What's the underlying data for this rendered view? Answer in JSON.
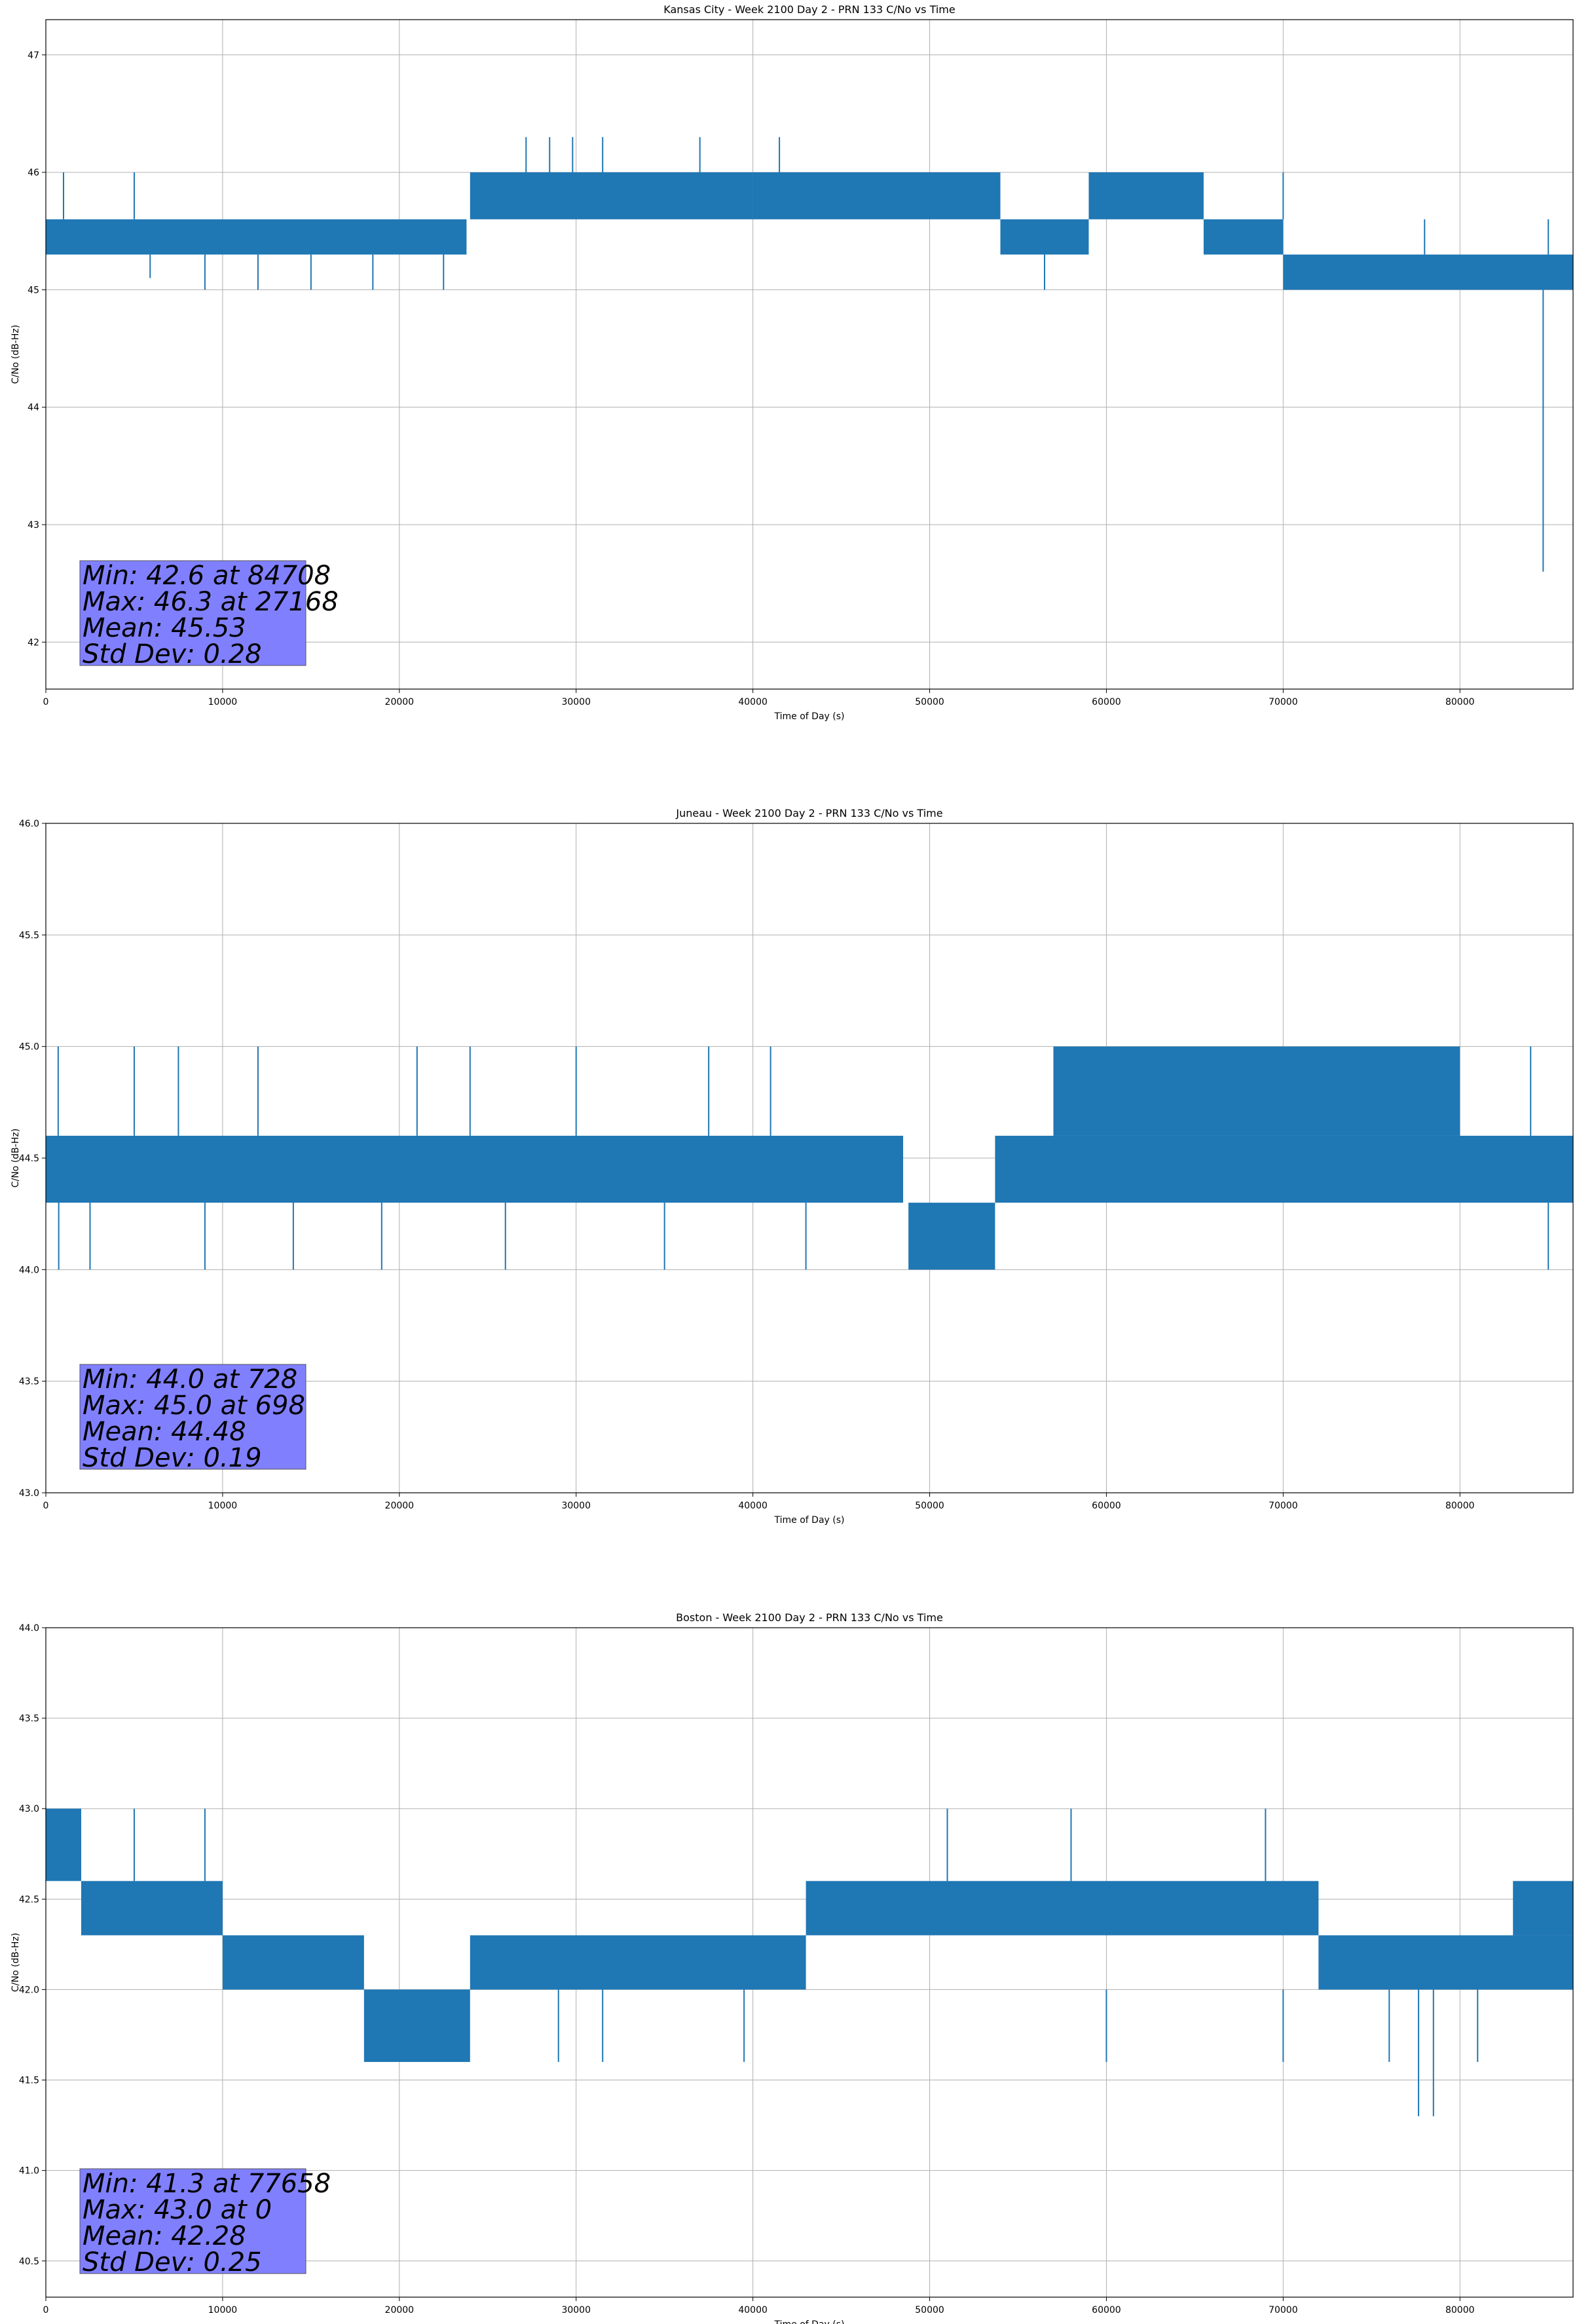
{
  "accent_color": "#1f77b4",
  "stats_box_color": "#8080ff",
  "chart_data": [
    {
      "type": "line",
      "title": "Kansas City - Week 2100 Day 2 - PRN 133 C/No vs Time",
      "xlabel": "Time of Day (s)",
      "ylabel": "C/No (dB-Hz)",
      "xlim": [
        0,
        86400
      ],
      "ylim": [
        41.6,
        47.3
      ],
      "xticks": [
        0,
        10000,
        20000,
        30000,
        40000,
        50000,
        60000,
        70000,
        80000
      ],
      "yticks": [
        42,
        43,
        44,
        45,
        46,
        47
      ],
      "ytick_format": 0,
      "grid": true,
      "series": [
        {
          "name": "C/No",
          "segments": [
            {
              "x": [
                0,
                23800
              ],
              "low": 45.3,
              "high": 45.6
            },
            {
              "x": [
                24000,
                40000
              ],
              "low": 45.6,
              "high": 46.0
            },
            {
              "x": [
                40000,
                54000
              ],
              "low": 45.6,
              "high": 46.0
            },
            {
              "x": [
                54000,
                59000
              ],
              "low": 45.3,
              "high": 45.6
            },
            {
              "x": [
                59000,
                65500
              ],
              "low": 45.6,
              "high": 46.0
            },
            {
              "x": [
                65500,
                70000
              ],
              "low": 45.3,
              "high": 45.6
            },
            {
              "x": [
                70000,
                86400
              ],
              "low": 45.0,
              "high": 45.3
            }
          ],
          "spikes": [
            {
              "x": 84708,
              "low": 42.6,
              "high": 45.0
            },
            {
              "x": 27168,
              "low": 46.0,
              "high": 46.3
            },
            {
              "x": 28500,
              "low": 46.0,
              "high": 46.3
            },
            {
              "x": 29800,
              "low": 46.0,
              "high": 46.3
            },
            {
              "x": 31500,
              "low": 46.0,
              "high": 46.3
            },
            {
              "x": 37000,
              "low": 46.0,
              "high": 46.3
            },
            {
              "x": 41500,
              "low": 46.0,
              "high": 46.3
            },
            {
              "x": 5000,
              "low": 45.6,
              "high": 46.0
            },
            {
              "x": 1000,
              "low": 45.6,
              "high": 46.0
            },
            {
              "x": 9000,
              "low": 45.0,
              "high": 45.3
            },
            {
              "x": 12000,
              "low": 45.0,
              "high": 45.3
            },
            {
              "x": 15000,
              "low": 45.0,
              "high": 45.3
            },
            {
              "x": 18500,
              "low": 45.0,
              "high": 45.3
            },
            {
              "x": 22500,
              "low": 45.0,
              "high": 45.3
            },
            {
              "x": 5900,
              "low": 45.1,
              "high": 45.3
            },
            {
              "x": 56500,
              "low": 45.0,
              "high": 45.3
            },
            {
              "x": 61000,
              "low": 46.0,
              "high": 46.0
            },
            {
              "x": 70000,
              "low": 45.6,
              "high": 46.0
            },
            {
              "x": 78000,
              "low": 45.3,
              "high": 45.6
            },
            {
              "x": 85000,
              "low": 45.3,
              "high": 45.6
            }
          ]
        }
      ],
      "stats": [
        "Min: 42.6 at 84708",
        "Max: 46.3 at 27168",
        "Mean: 45.53",
        "Std Dev: 0.28"
      ]
    },
    {
      "type": "line",
      "title": "Juneau - Week 2100 Day 2 - PRN 133 C/No vs Time",
      "xlabel": "Time of Day (s)",
      "ylabel": "C/No (dB-Hz)",
      "xlim": [
        0,
        86400
      ],
      "ylim": [
        43.0,
        46.0
      ],
      "xticks": [
        0,
        10000,
        20000,
        30000,
        40000,
        50000,
        60000,
        70000,
        80000
      ],
      "yticks": [
        43.0,
        43.5,
        44.0,
        44.5,
        45.0,
        45.5,
        46.0
      ],
      "ytick_format": 1,
      "grid": true,
      "series": [
        {
          "name": "C/No",
          "segments": [
            {
              "x": [
                0,
                48500
              ],
              "low": 44.3,
              "high": 44.6
            },
            {
              "x": [
                48800,
                53700
              ],
              "low": 44.0,
              "high": 44.3
            },
            {
              "x": [
                53700,
                86400
              ],
              "low": 44.3,
              "high": 44.6
            },
            {
              "x": [
                57000,
                80000
              ],
              "low": 44.6,
              "high": 45.0
            }
          ],
          "spikes": [
            {
              "x": 728,
              "low": 44.0,
              "high": 44.3
            },
            {
              "x": 698,
              "low": 44.6,
              "high": 45.0
            },
            {
              "x": 5000,
              "low": 44.6,
              "high": 45.0
            },
            {
              "x": 7500,
              "low": 44.6,
              "high": 45.0
            },
            {
              "x": 12000,
              "low": 44.6,
              "high": 45.0
            },
            {
              "x": 21000,
              "low": 44.6,
              "high": 45.0
            },
            {
              "x": 24000,
              "low": 44.6,
              "high": 45.0
            },
            {
              "x": 30000,
              "low": 44.6,
              "high": 45.0
            },
            {
              "x": 37500,
              "low": 44.6,
              "high": 45.0
            },
            {
              "x": 41000,
              "low": 44.6,
              "high": 45.0
            },
            {
              "x": 2500,
              "low": 44.0,
              "high": 44.3
            },
            {
              "x": 9000,
              "low": 44.0,
              "high": 44.3
            },
            {
              "x": 14000,
              "low": 44.0,
              "high": 44.3
            },
            {
              "x": 19000,
              "low": 44.0,
              "high": 44.3
            },
            {
              "x": 26000,
              "low": 44.0,
              "high": 44.3
            },
            {
              "x": 35000,
              "low": 44.0,
              "high": 44.3
            },
            {
              "x": 43000,
              "low": 44.0,
              "high": 44.3
            },
            {
              "x": 85000,
              "low": 44.0,
              "high": 44.3
            },
            {
              "x": 84000,
              "low": 44.6,
              "high": 45.0
            }
          ]
        }
      ],
      "stats": [
        "Min: 44.0 at 728",
        "Max: 45.0 at 698",
        "Mean: 44.48",
        "Std Dev: 0.19"
      ]
    },
    {
      "type": "line",
      "title": "Boston - Week 2100 Day 2 - PRN 133 C/No vs Time",
      "xlabel": "Time of Day (s)",
      "ylabel": "C/No (dB-Hz)",
      "xlim": [
        0,
        86400
      ],
      "ylim": [
        40.3,
        44.0
      ],
      "xticks": [
        0,
        10000,
        20000,
        30000,
        40000,
        50000,
        60000,
        70000,
        80000
      ],
      "yticks": [
        40.5,
        41.0,
        41.5,
        42.0,
        42.5,
        43.0,
        43.5,
        44.0
      ],
      "ytick_format": 1,
      "grid": true,
      "series": [
        {
          "name": "C/No",
          "segments": [
            {
              "x": [
                0,
                2000
              ],
              "low": 42.6,
              "high": 43.0
            },
            {
              "x": [
                2000,
                10000
              ],
              "low": 42.3,
              "high": 42.6
            },
            {
              "x": [
                10000,
                18000
              ],
              "low": 42.0,
              "high": 42.3
            },
            {
              "x": [
                18000,
                24000
              ],
              "low": 41.6,
              "high": 42.0
            },
            {
              "x": [
                24000,
                43000
              ],
              "low": 42.0,
              "high": 42.3
            },
            {
              "x": [
                43000,
                72000
              ],
              "low": 42.3,
              "high": 42.6
            },
            {
              "x": [
                72000,
                86400
              ],
              "low": 42.0,
              "high": 42.3
            },
            {
              "x": [
                83000,
                86400
              ],
              "low": 42.3,
              "high": 42.6
            }
          ],
          "spikes": [
            {
              "x": 0,
              "low": 42.6,
              "high": 43.0
            },
            {
              "x": 77658,
              "low": 41.3,
              "high": 42.0
            },
            {
              "x": 78500,
              "low": 41.3,
              "high": 42.0
            },
            {
              "x": 5000,
              "low": 42.6,
              "high": 43.0
            },
            {
              "x": 9000,
              "low": 42.6,
              "high": 43.0
            },
            {
              "x": 51000,
              "low": 42.6,
              "high": 43.0
            },
            {
              "x": 58000,
              "low": 42.6,
              "high": 43.0
            },
            {
              "x": 69000,
              "low": 42.6,
              "high": 43.0
            },
            {
              "x": 29000,
              "low": 41.6,
              "high": 42.0
            },
            {
              "x": 31500,
              "low": 41.6,
              "high": 42.0
            },
            {
              "x": 39500,
              "low": 41.6,
              "high": 42.0
            },
            {
              "x": 60000,
              "low": 41.6,
              "high": 42.0
            },
            {
              "x": 70000,
              "low": 41.6,
              "high": 42.0
            },
            {
              "x": 76000,
              "low": 41.6,
              "high": 42.0
            },
            {
              "x": 81000,
              "low": 41.6,
              "high": 42.0
            }
          ]
        }
      ],
      "stats": [
        "Min: 41.3 at 77658",
        "Max: 43.0 at 0",
        "Mean: 42.28",
        "Std Dev: 0.25"
      ]
    }
  ]
}
